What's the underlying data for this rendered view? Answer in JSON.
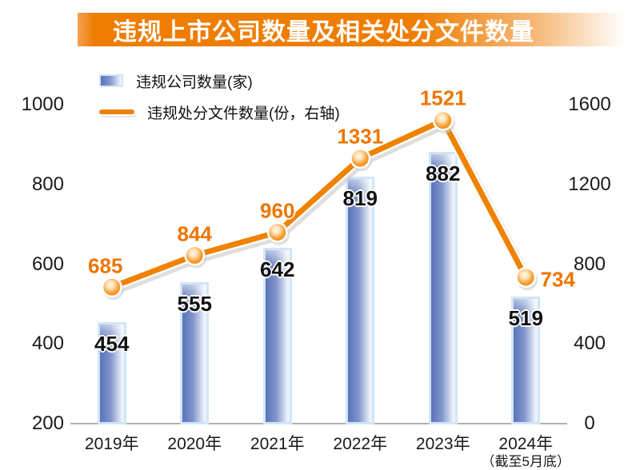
{
  "title": "违规上市公司数量及相关处分文件数量",
  "legend": {
    "bar_label": "违规公司数量(家)",
    "line_label": "违规处分文件数量(份，右轴)"
  },
  "chart_data": {
    "type": "bar+line",
    "categories": [
      "2019年",
      "2020年",
      "2021年",
      "2022年",
      "2023年",
      "2024年"
    ],
    "category_note": {
      "index": 5,
      "text": "（截至5月底）"
    },
    "series": [
      {
        "name": "违规公司数量(家)",
        "type": "bar",
        "axis": "left",
        "values": [
          454,
          555,
          642,
          819,
          882,
          519
        ]
      },
      {
        "name": "违规处分文件数量(份，右轴)",
        "type": "line",
        "axis": "right",
        "values": [
          685,
          844,
          960,
          1331,
          1521,
          734
        ]
      }
    ],
    "left_axis": {
      "min": 200,
      "max": 1000,
      "ticks": [
        200,
        400,
        600,
        800,
        1000
      ]
    },
    "right_axis": {
      "min": 0,
      "max": 1600,
      "ticks": [
        0,
        400,
        800,
        1200,
        1600
      ]
    },
    "grid": false,
    "legend_position": "top-left"
  },
  "colors": {
    "banner_orange": "#ee7d02",
    "line_orange": "#ef8200",
    "value_label_orange": "#ee7500",
    "bar_blue_dark": "#5a73ba",
    "bar_blue_light": "#eef2fb",
    "bar_border_blue": "#cfe6f8",
    "axis_line_gray": "#b0b0b0",
    "text_dark": "#1a1a1a",
    "title_text": "#ffffff"
  }
}
